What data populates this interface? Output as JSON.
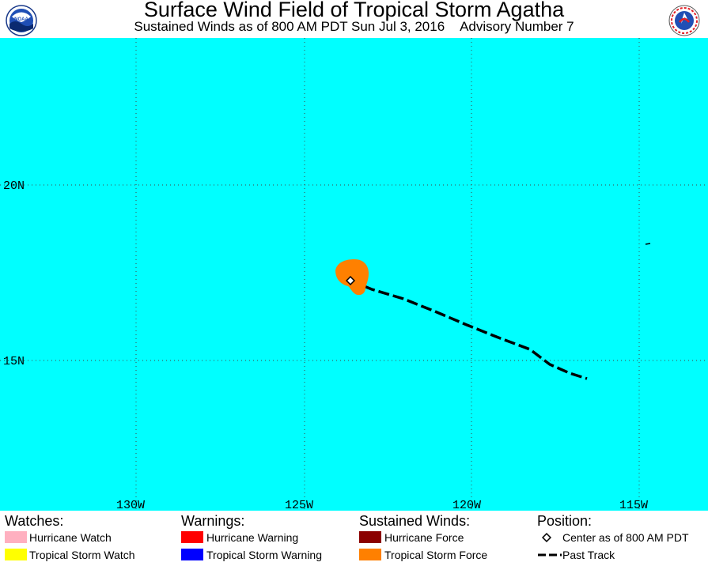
{
  "title": "Surface Wind Field of Tropical Storm Agatha",
  "subtitle": "Sustained Winds as of 800 AM PDT Sun Jul 3, 2016",
  "advisory": "Advisory Number 7",
  "logos": {
    "left": "NOAA",
    "right": "NATIONAL WEATHER SERVICE"
  },
  "map": {
    "ocean_color": "#00ffff",
    "lat_labels": [
      "20N",
      "15N"
    ],
    "lon_labels": [
      "130W",
      "125W",
      "120W",
      "115W"
    ],
    "wind_field_color": "#ff8000",
    "track_color": "#000000"
  },
  "legend": {
    "watches": {
      "heading": "Watches:",
      "items": [
        {
          "label": "Hurricane Watch",
          "color": "#ffb0c0"
        },
        {
          "label": "Tropical Storm Watch",
          "color": "#ffff00"
        }
      ]
    },
    "warnings": {
      "heading": "Warnings:",
      "items": [
        {
          "label": "Hurricane Warning",
          "color": "#ff0000"
        },
        {
          "label": "Tropical Storm Warning",
          "color": "#0000ff"
        }
      ]
    },
    "winds": {
      "heading": "Sustained Winds:",
      "items": [
        {
          "label": "Hurricane Force",
          "color": "#8b0000"
        },
        {
          "label": "Tropical Storm Force",
          "color": "#ff8000"
        }
      ]
    },
    "position": {
      "heading": "Position:",
      "items": [
        {
          "label": "Center as of 800 AM PDT"
        },
        {
          "label": "Past Track"
        }
      ]
    }
  }
}
